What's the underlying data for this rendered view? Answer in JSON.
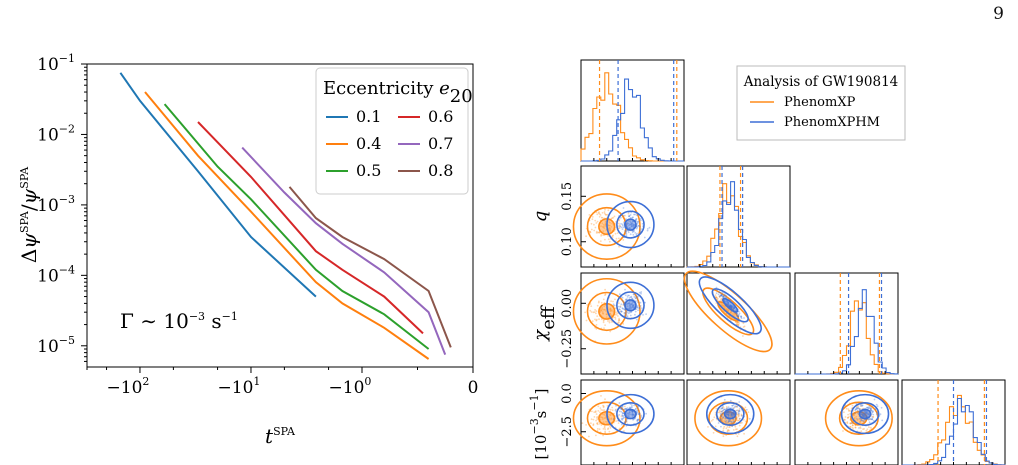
{
  "page_number": "9",
  "chart_data": [
    {
      "type": "line",
      "x_scale": "symlog-negative",
      "y_scale": "log",
      "xlabel": "t^SPA",
      "ylabel": "Δψ^SPA/ψ^SPA",
      "xlim": [
        -300,
        0
      ],
      "ylim": [
        5e-06,
        0.1
      ],
      "x_ticks": [
        "−10^2",
        "−10^1",
        "−10^0",
        "0"
      ],
      "y_ticks": [
        "10^−5",
        "10^−4",
        "10^−3",
        "10^−2",
        "10^−1"
      ],
      "annotation": "Γ ∼ 10^−3 s^−1",
      "legend": {
        "title": "Eccentricity e_20",
        "placement": "top-right",
        "ncol": 2
      },
      "series": [
        {
          "name": "0.1",
          "color": "#1f77b4",
          "x": [
            -150,
            -100,
            -30,
            -10,
            -2.6
          ],
          "y": [
            0.075,
            0.03,
            0.003,
            0.00035,
            5e-05
          ]
        },
        {
          "name": "0.4",
          "color": "#ff7f0e",
          "x": [
            -90,
            -30,
            -10,
            -2.6,
            -1.5,
            -0.8,
            -0.4
          ],
          "y": [
            0.04,
            0.005,
            0.0008,
            8e-05,
            4e-05,
            1.8e-05,
            6.5e-06
          ]
        },
        {
          "name": "0.5",
          "color": "#2ca02c",
          "x": [
            -60,
            -20,
            -10,
            -2.6,
            -1.5,
            -0.8,
            -0.4
          ],
          "y": [
            0.027,
            0.0035,
            0.0012,
            0.00012,
            6e-05,
            2.8e-05,
            9e-06
          ]
        },
        {
          "name": "0.6",
          "color": "#d62728",
          "x": [
            -30,
            -10,
            -2.6,
            -1.5,
            -0.8,
            -0.45
          ],
          "y": [
            0.015,
            0.0025,
            0.00022,
            0.00012,
            5e-05,
            1.5e-05
          ]
        },
        {
          "name": "0.7",
          "color": "#9467bd",
          "x": [
            -12,
            -5,
            -2.6,
            -1.5,
            -0.8,
            -0.4,
            -0.25
          ],
          "y": [
            0.0065,
            0.0015,
            0.00055,
            0.00028,
            0.00011,
            3e-05,
            7.5e-06
          ]
        },
        {
          "name": "0.8",
          "color": "#8c564b",
          "x": [
            -4.5,
            -2.6,
            -1.5,
            -0.8,
            -0.4,
            -0.2
          ],
          "y": [
            0.0018,
            0.00065,
            0.00035,
            0.00017,
            6e-05,
            9.5e-06
          ]
        }
      ]
    },
    {
      "type": "corner",
      "legend": {
        "title": "Analysis of GW190814",
        "entries": [
          {
            "name": "PhenomXP",
            "color": "#ff8c1a"
          },
          {
            "name": "PhenomXPHM",
            "color": "#3d6fd6"
          }
        ]
      },
      "row_labels": [
        "",
        "q",
        "χ_eff",
        "[10^−3 s^−1]"
      ],
      "params": [
        {
          "key": "p1",
          "ticks": []
        },
        {
          "key": "q",
          "ticks": [
            "0.15",
            "0.10"
          ]
        },
        {
          "key": "chi_eff",
          "ticks": [
            "0.00",
            "−0.25"
          ]
        },
        {
          "key": "gamma",
          "ticks": [
            "0.0",
            "−2.5"
          ]
        }
      ],
      "marginals": [
        {
          "orange_mean": 0.25,
          "orange_sd": 0.12,
          "blue_mean": 0.48,
          "blue_sd": 0.1,
          "lines_orange": [
            0.18,
            0.93
          ],
          "lines_blue": [
            0.36,
            0.9
          ]
        },
        {
          "orange_mean": 0.4,
          "orange_sd": 0.1,
          "blue_mean": 0.42,
          "blue_sd": 0.09,
          "lines_orange": [
            0.32,
            0.52
          ],
          "lines_blue": [
            0.34,
            0.54
          ]
        },
        {
          "orange_mean": 0.62,
          "orange_sd": 0.08,
          "blue_mean": 0.68,
          "blue_sd": 0.08,
          "lines_orange": [
            0.44,
            0.82
          ],
          "lines_blue": [
            0.52,
            0.84
          ]
        },
        {
          "orange_mean": 0.55,
          "orange_sd": 0.12,
          "blue_mean": 0.6,
          "blue_sd": 0.1,
          "lines_orange": [
            0.35,
            0.8
          ],
          "lines_blue": [
            0.5,
            0.82
          ]
        }
      ]
    }
  ]
}
